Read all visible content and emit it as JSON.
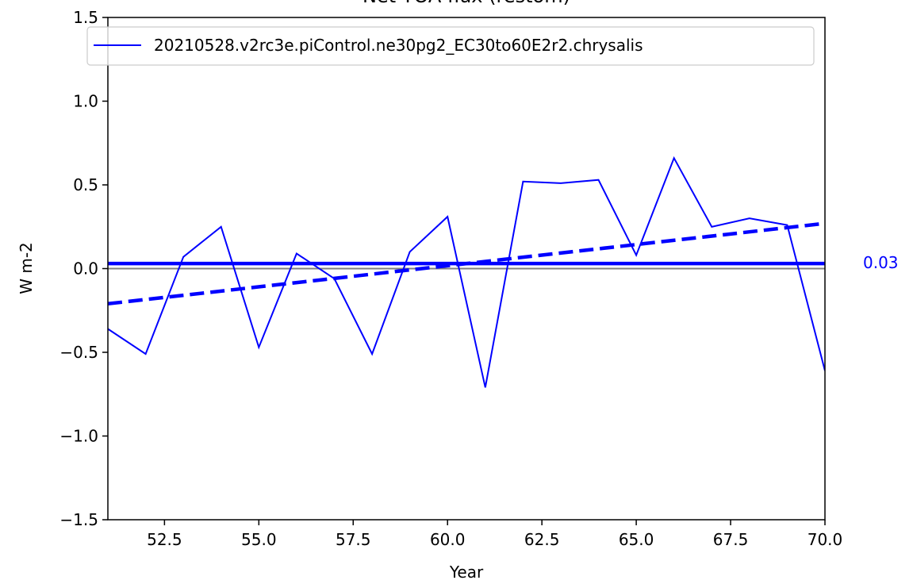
{
  "colors": {
    "series": "#0000ff",
    "zero_line": "#808080",
    "axes": "#000000",
    "legend_border": "#cccccc"
  },
  "chart_data": {
    "type": "line",
    "title": "Net TOA flux (restom)",
    "xlabel": "Year",
    "ylabel": "W m-2",
    "xlim": [
      51,
      70
    ],
    "ylim": [
      -1.5,
      1.5
    ],
    "xticks": [
      52.5,
      55.0,
      57.5,
      60.0,
      62.5,
      65.0,
      67.5,
      70.0
    ],
    "xtick_labels": [
      "52.5",
      "55.0",
      "57.5",
      "60.0",
      "62.5",
      "65.0",
      "67.5",
      "70.0"
    ],
    "yticks": [
      -1.5,
      -1.0,
      -0.5,
      0.0,
      0.5,
      1.0,
      1.5
    ],
    "ytick_labels": [
      "−1.5",
      "−1.0",
      "−0.5",
      "0.0",
      "0.5",
      "1.0",
      "1.5"
    ],
    "legend_position": "top-center",
    "grid": false,
    "series": [
      {
        "name": "20210528.v2rc3e.piControl.ne30pg2_EC30to60E2r2.chrysalis",
        "color": "#0000ff",
        "x": [
          51,
          52,
          53,
          54,
          55,
          56,
          57,
          58,
          59,
          60,
          61,
          62,
          63,
          64,
          65,
          66,
          67,
          68,
          69,
          70
        ],
        "y": [
          -0.36,
          -0.51,
          0.07,
          0.25,
          -0.47,
          0.09,
          -0.06,
          -0.51,
          0.1,
          0.31,
          -0.71,
          0.52,
          0.51,
          0.53,
          0.08,
          0.66,
          0.25,
          0.3,
          0.26,
          -0.61
        ]
      }
    ],
    "mean": {
      "value": 0.03,
      "label": "0.03"
    },
    "trend": {
      "x": [
        51,
        70
      ],
      "y": [
        -0.21,
        0.27
      ]
    },
    "zero_line": 0.0
  }
}
